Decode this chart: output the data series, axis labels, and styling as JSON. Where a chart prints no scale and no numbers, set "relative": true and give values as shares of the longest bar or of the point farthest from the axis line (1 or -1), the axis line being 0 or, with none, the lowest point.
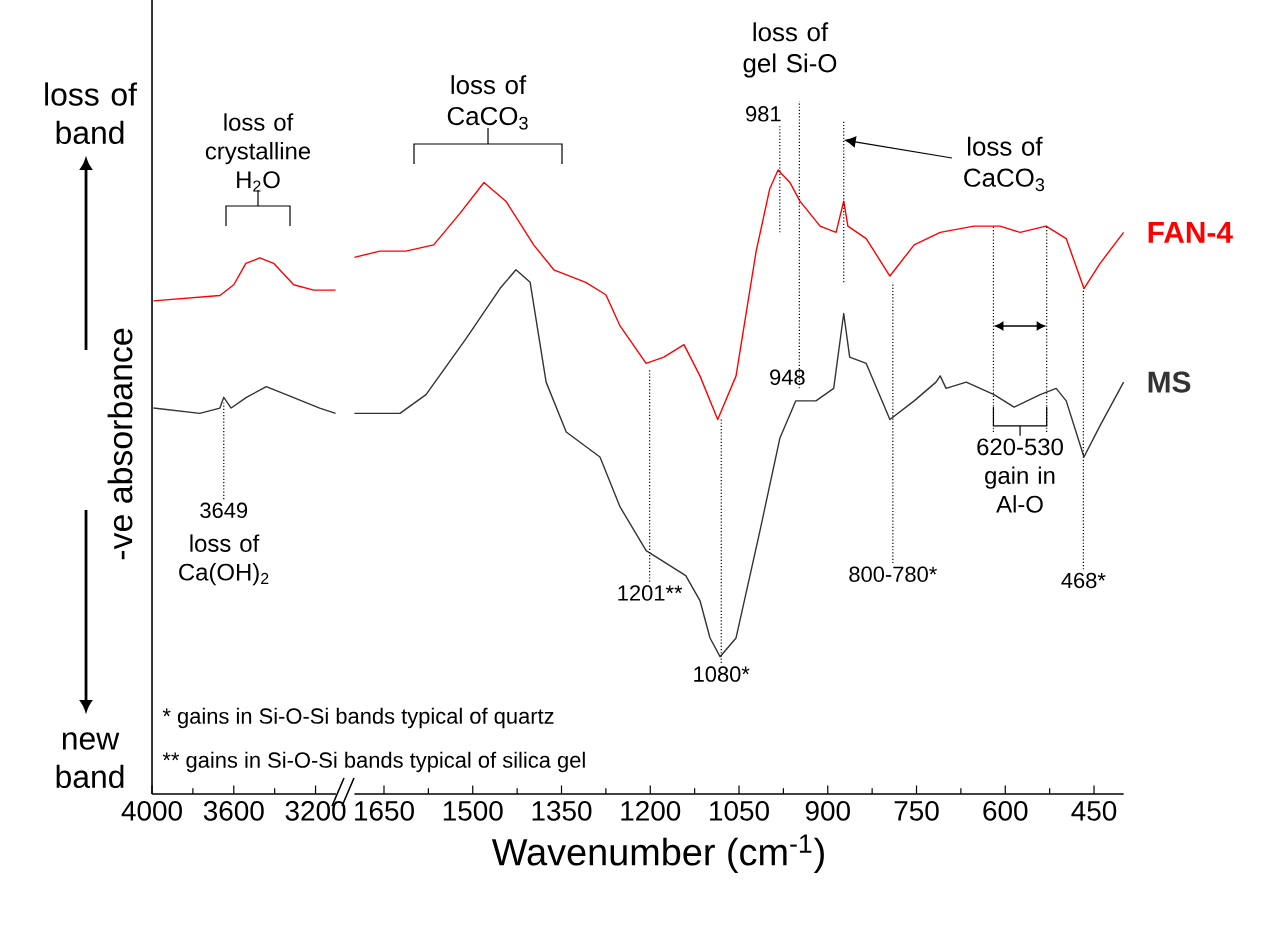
{
  "chart_data": [
    {
      "type": "line",
      "relative": true,
      "xlim": [
        4000,
        3100
      ],
      "xticks": [
        4000,
        3600,
        3200
      ],
      "tick_labels": "x",
      "ylabel": "-ve absorbance",
      "series": [
        {
          "color": "#ff0000",
          "x": [
            3993,
            3668,
            3600,
            3541,
            3473,
            3405,
            3307,
            3209,
            3102
          ],
          "values": [
            0.92,
            0.93,
            0.95,
            0.99,
            1.0,
            0.99,
            0.95,
            0.94,
            0.94
          ]
        },
        {
          "color": "#333333",
          "x": [
            3993,
            3766,
            3668,
            3649,
            3613,
            3538,
            3441,
            3310,
            3180,
            3102
          ],
          "values": [
            0.72,
            0.71,
            0.72,
            0.74,
            0.72,
            0.74,
            0.76,
            0.74,
            0.72,
            0.71
          ]
        }
      ],
      "ref_lines": [
        {
          "axis": "x",
          "value": 3649,
          "line_style": "dotted"
        }
      ],
      "annotations": [
        "loss of band",
        "new band",
        "loss of crystalline H$_{2}$O",
        {
          "text": "3649",
          "x": 3649,
          "y": 0.55
        },
        "loss of Ca(OH)$_{2}$",
        "* gains in Si-O-Si bands typical of quartz",
        "** gains in Si-O-Si bands typical of silica gel"
      ]
    },
    {
      "type": "line",
      "relative": true,
      "xlim": [
        1700,
        400
      ],
      "xticks": [
        1650,
        1500,
        1350,
        1200,
        1050,
        900,
        750,
        600,
        450
      ],
      "tick_labels": "x",
      "xlabel": "Wavenumber (cm$^{-1}$)",
      "series": [
        {
          "name": "FAN-4",
          "color": "#ff0000",
          "x": [
            1700,
            1657,
            1613,
            1566,
            1522,
            1481,
            1444,
            1397,
            1363,
            1309,
            1275,
            1251,
            1207,
            1177,
            1143,
            1116,
            1086,
            1055,
            1021,
            998,
            984,
            964,
            947,
            913,
            886,
            873,
            866,
            835,
            795,
            754,
            710,
            653,
            609,
            575,
            531,
            497,
            467,
            440,
            400
          ],
          "values": [
            0.86,
            0.87,
            0.87,
            0.88,
            0.93,
            0.98,
            0.95,
            0.88,
            0.84,
            0.82,
            0.8,
            0.75,
            0.69,
            0.7,
            0.72,
            0.67,
            0.6,
            0.67,
            0.87,
            0.97,
            1.0,
            0.98,
            0.95,
            0.91,
            0.9,
            0.95,
            0.91,
            0.89,
            0.83,
            0.88,
            0.9,
            0.91,
            0.91,
            0.9,
            0.91,
            0.89,
            0.81,
            0.85,
            0.9
          ]
        },
        {
          "name": "MS",
          "color": "#333333",
          "x": [
            1700,
            1623,
            1579,
            1511,
            1454,
            1427,
            1403,
            1376,
            1342,
            1285,
            1251,
            1207,
            1140,
            1116,
            1099,
            1082,
            1055,
            1015,
            981,
            954,
            920,
            890,
            873,
            863,
            835,
            795,
            754,
            717,
            710,
            700,
            666,
            619,
            585,
            541,
            514,
            497,
            467,
            440,
            400
          ],
          "values": [
            0.61,
            0.61,
            0.64,
            0.73,
            0.81,
            0.84,
            0.82,
            0.66,
            0.58,
            0.54,
            0.46,
            0.39,
            0.35,
            0.31,
            0.25,
            0.22,
            0.25,
            0.42,
            0.57,
            0.63,
            0.63,
            0.65,
            0.77,
            0.7,
            0.69,
            0.6,
            0.63,
            0.66,
            0.67,
            0.65,
            0.66,
            0.64,
            0.62,
            0.64,
            0.65,
            0.63,
            0.54,
            0.59,
            0.66
          ]
        }
      ],
      "ref_lines": [
        {
          "axis": "x",
          "value": 1201,
          "line_style": "dotted"
        },
        {
          "axis": "x",
          "value": 1080,
          "line_style": "dotted"
        },
        {
          "axis": "x",
          "value": 981,
          "line_style": "dotted"
        },
        {
          "axis": "x",
          "value": 948,
          "line_style": "dotted"
        },
        {
          "axis": "x",
          "value": 873,
          "line_style": "dotted"
        },
        {
          "axis": "x",
          "value": 790,
          "line_style": "dotted"
        },
        {
          "axis": "x",
          "value": 620,
          "line_style": "dotted"
        },
        {
          "axis": "x",
          "value": 530,
          "line_style": "dotted"
        },
        {
          "axis": "x",
          "value": 468,
          "line_style": "dotted"
        }
      ],
      "annotations": [
        "loss of CaCO$_{3}$",
        {
          "text": "1201**",
          "x": 1201,
          "y": 0.34
        },
        {
          "text": "1080*",
          "x": 1080,
          "y": 0.21
        },
        "981",
        "loss of gel Si-O",
        {
          "text": "948",
          "x": 948,
          "y": 0.65
        },
        "loss of CaCO$_{3}$",
        {
          "text": "800-780*",
          "x": 790,
          "y": 0.37
        },
        "620-530 gain in Al-O",
        {
          "text": "468*",
          "x": 468,
          "y": 0.36
        }
      ]
    }
  ]
}
